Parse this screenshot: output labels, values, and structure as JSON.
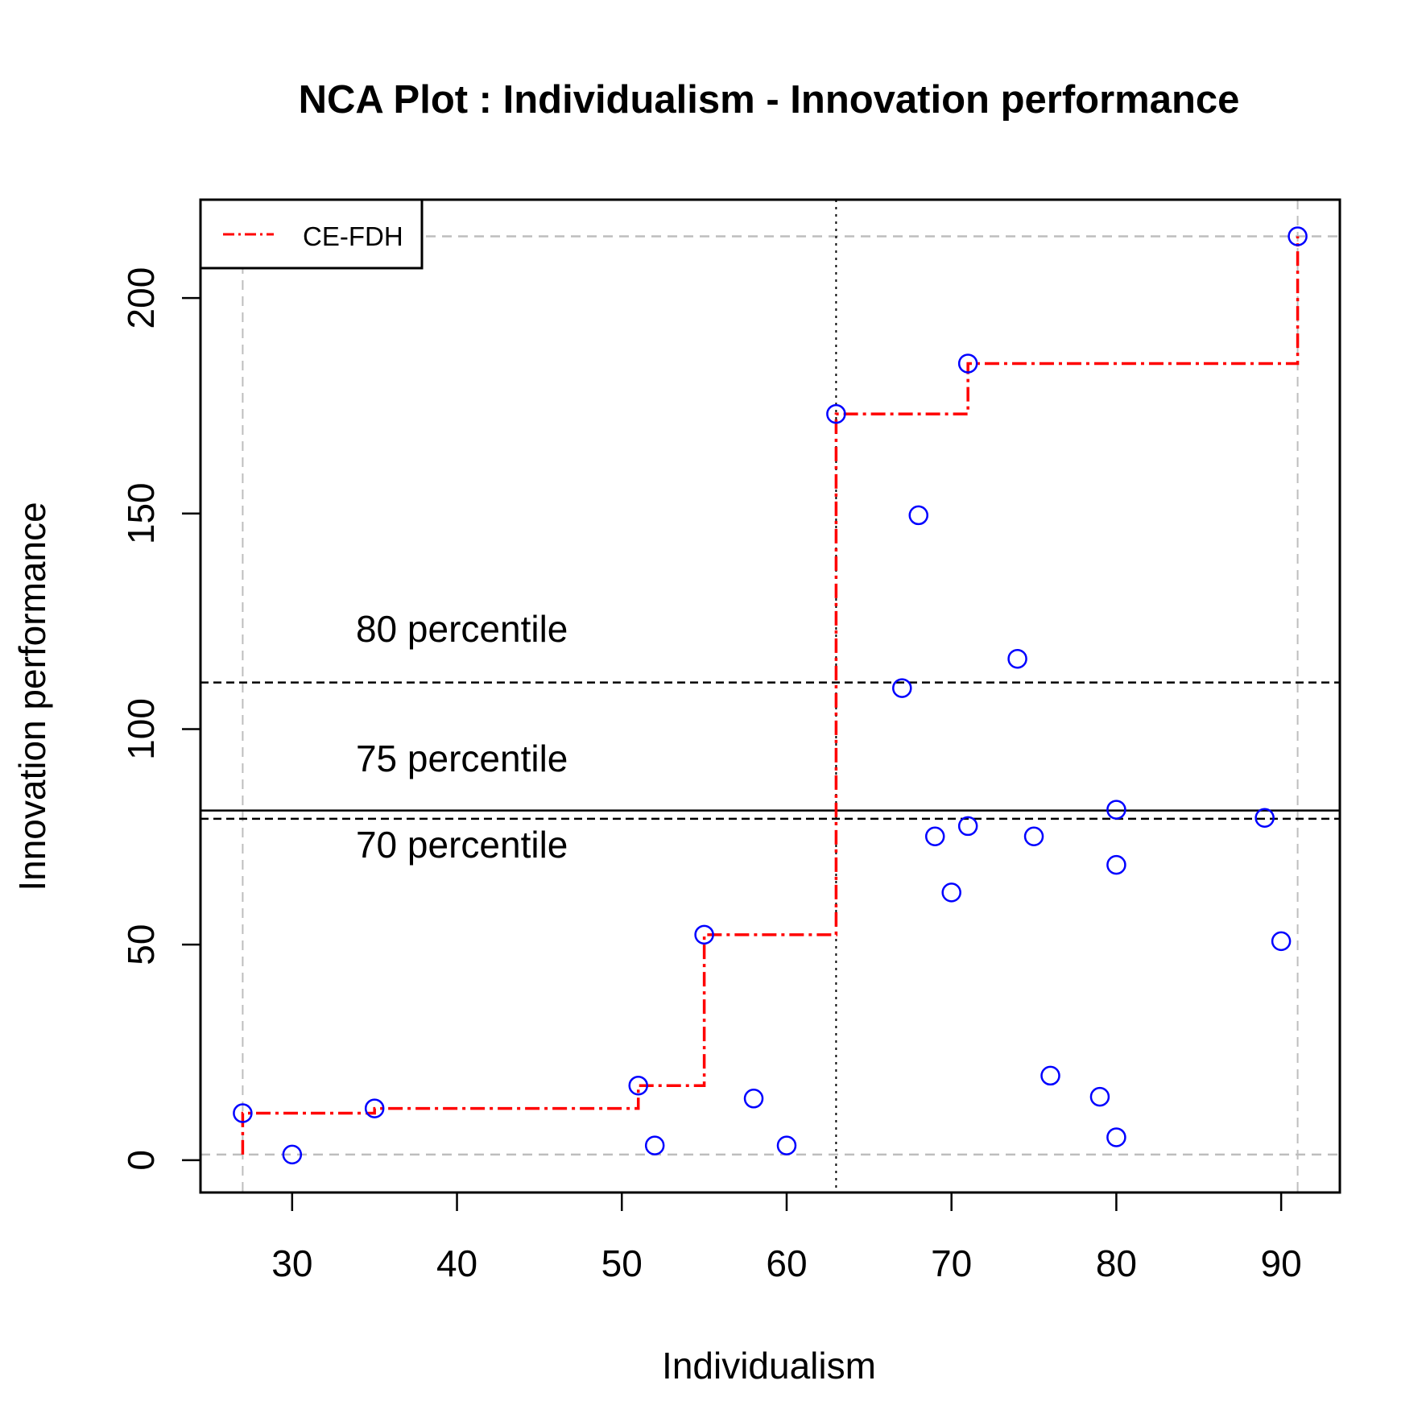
{
  "chart_data": {
    "type": "scatter",
    "title": "NCA Plot : Individualism - Innovation performance",
    "xlabel": "Individualism",
    "ylabel": "Innovation performance",
    "xlim": [
      24.44,
      93.56
    ],
    "ylim": [
      -7.5,
      222.8
    ],
    "xticks": [
      30,
      40,
      50,
      60,
      70,
      80,
      90
    ],
    "xtick_labels": [
      "30",
      "40",
      "50",
      "60",
      "70",
      "80",
      "90"
    ],
    "yticks": [
      0,
      50,
      100,
      150,
      200
    ],
    "ytick_labels": [
      "0",
      "50",
      "100",
      "150",
      "200"
    ],
    "grid": false,
    "point_color": "#0000ff",
    "points": [
      [
        27,
        10.9
      ],
      [
        30,
        1.3
      ],
      [
        35,
        12.0
      ],
      [
        51,
        17.3
      ],
      [
        52,
        3.4
      ],
      [
        55,
        52.3
      ],
      [
        58,
        14.3
      ],
      [
        60,
        3.4
      ],
      [
        63,
        173.1
      ],
      [
        67,
        109.5
      ],
      [
        68,
        149.6
      ],
      [
        69,
        75.1
      ],
      [
        70,
        62.1
      ],
      [
        71,
        77.5
      ],
      [
        71,
        184.8
      ],
      [
        74,
        116.3
      ],
      [
        75,
        75.1
      ],
      [
        76,
        19.6
      ],
      [
        79,
        14.7
      ],
      [
        80,
        81.3
      ],
      [
        80,
        68.5
      ],
      [
        80,
        5.3
      ],
      [
        89,
        79.4
      ],
      [
        90,
        50.8
      ],
      [
        91,
        214.3
      ]
    ],
    "ceiling": {
      "name": "CE-FDH",
      "color": "#ff0000",
      "steps": [
        [
          27,
          1.3
        ],
        [
          27,
          10.9
        ],
        [
          35,
          10.9
        ],
        [
          35,
          12.0
        ],
        [
          51,
          12.0
        ],
        [
          51,
          17.3
        ],
        [
          55,
          17.3
        ],
        [
          55,
          52.3
        ],
        [
          63,
          52.3
        ],
        [
          63,
          173.1
        ],
        [
          71,
          173.1
        ],
        [
          71,
          184.8
        ],
        [
          91,
          184.8
        ],
        [
          91,
          214.3
        ]
      ]
    },
    "scope_lines": {
      "x": [
        27,
        91
      ],
      "y": [
        1.3,
        214.3
      ],
      "color": "#bebebe"
    },
    "threshold_x": 63,
    "percentiles": [
      {
        "label": "80 percentile",
        "value": 110.8,
        "style": "dashed"
      },
      {
        "label": "75 percentile",
        "value": 81.1,
        "style": "solid"
      },
      {
        "label": "70 percentile",
        "value": 79.2,
        "style": "dashed"
      }
    ],
    "percentile_label_x": 40.3,
    "legend": {
      "position": "top-left",
      "entries": [
        "CE-FDH"
      ]
    }
  }
}
